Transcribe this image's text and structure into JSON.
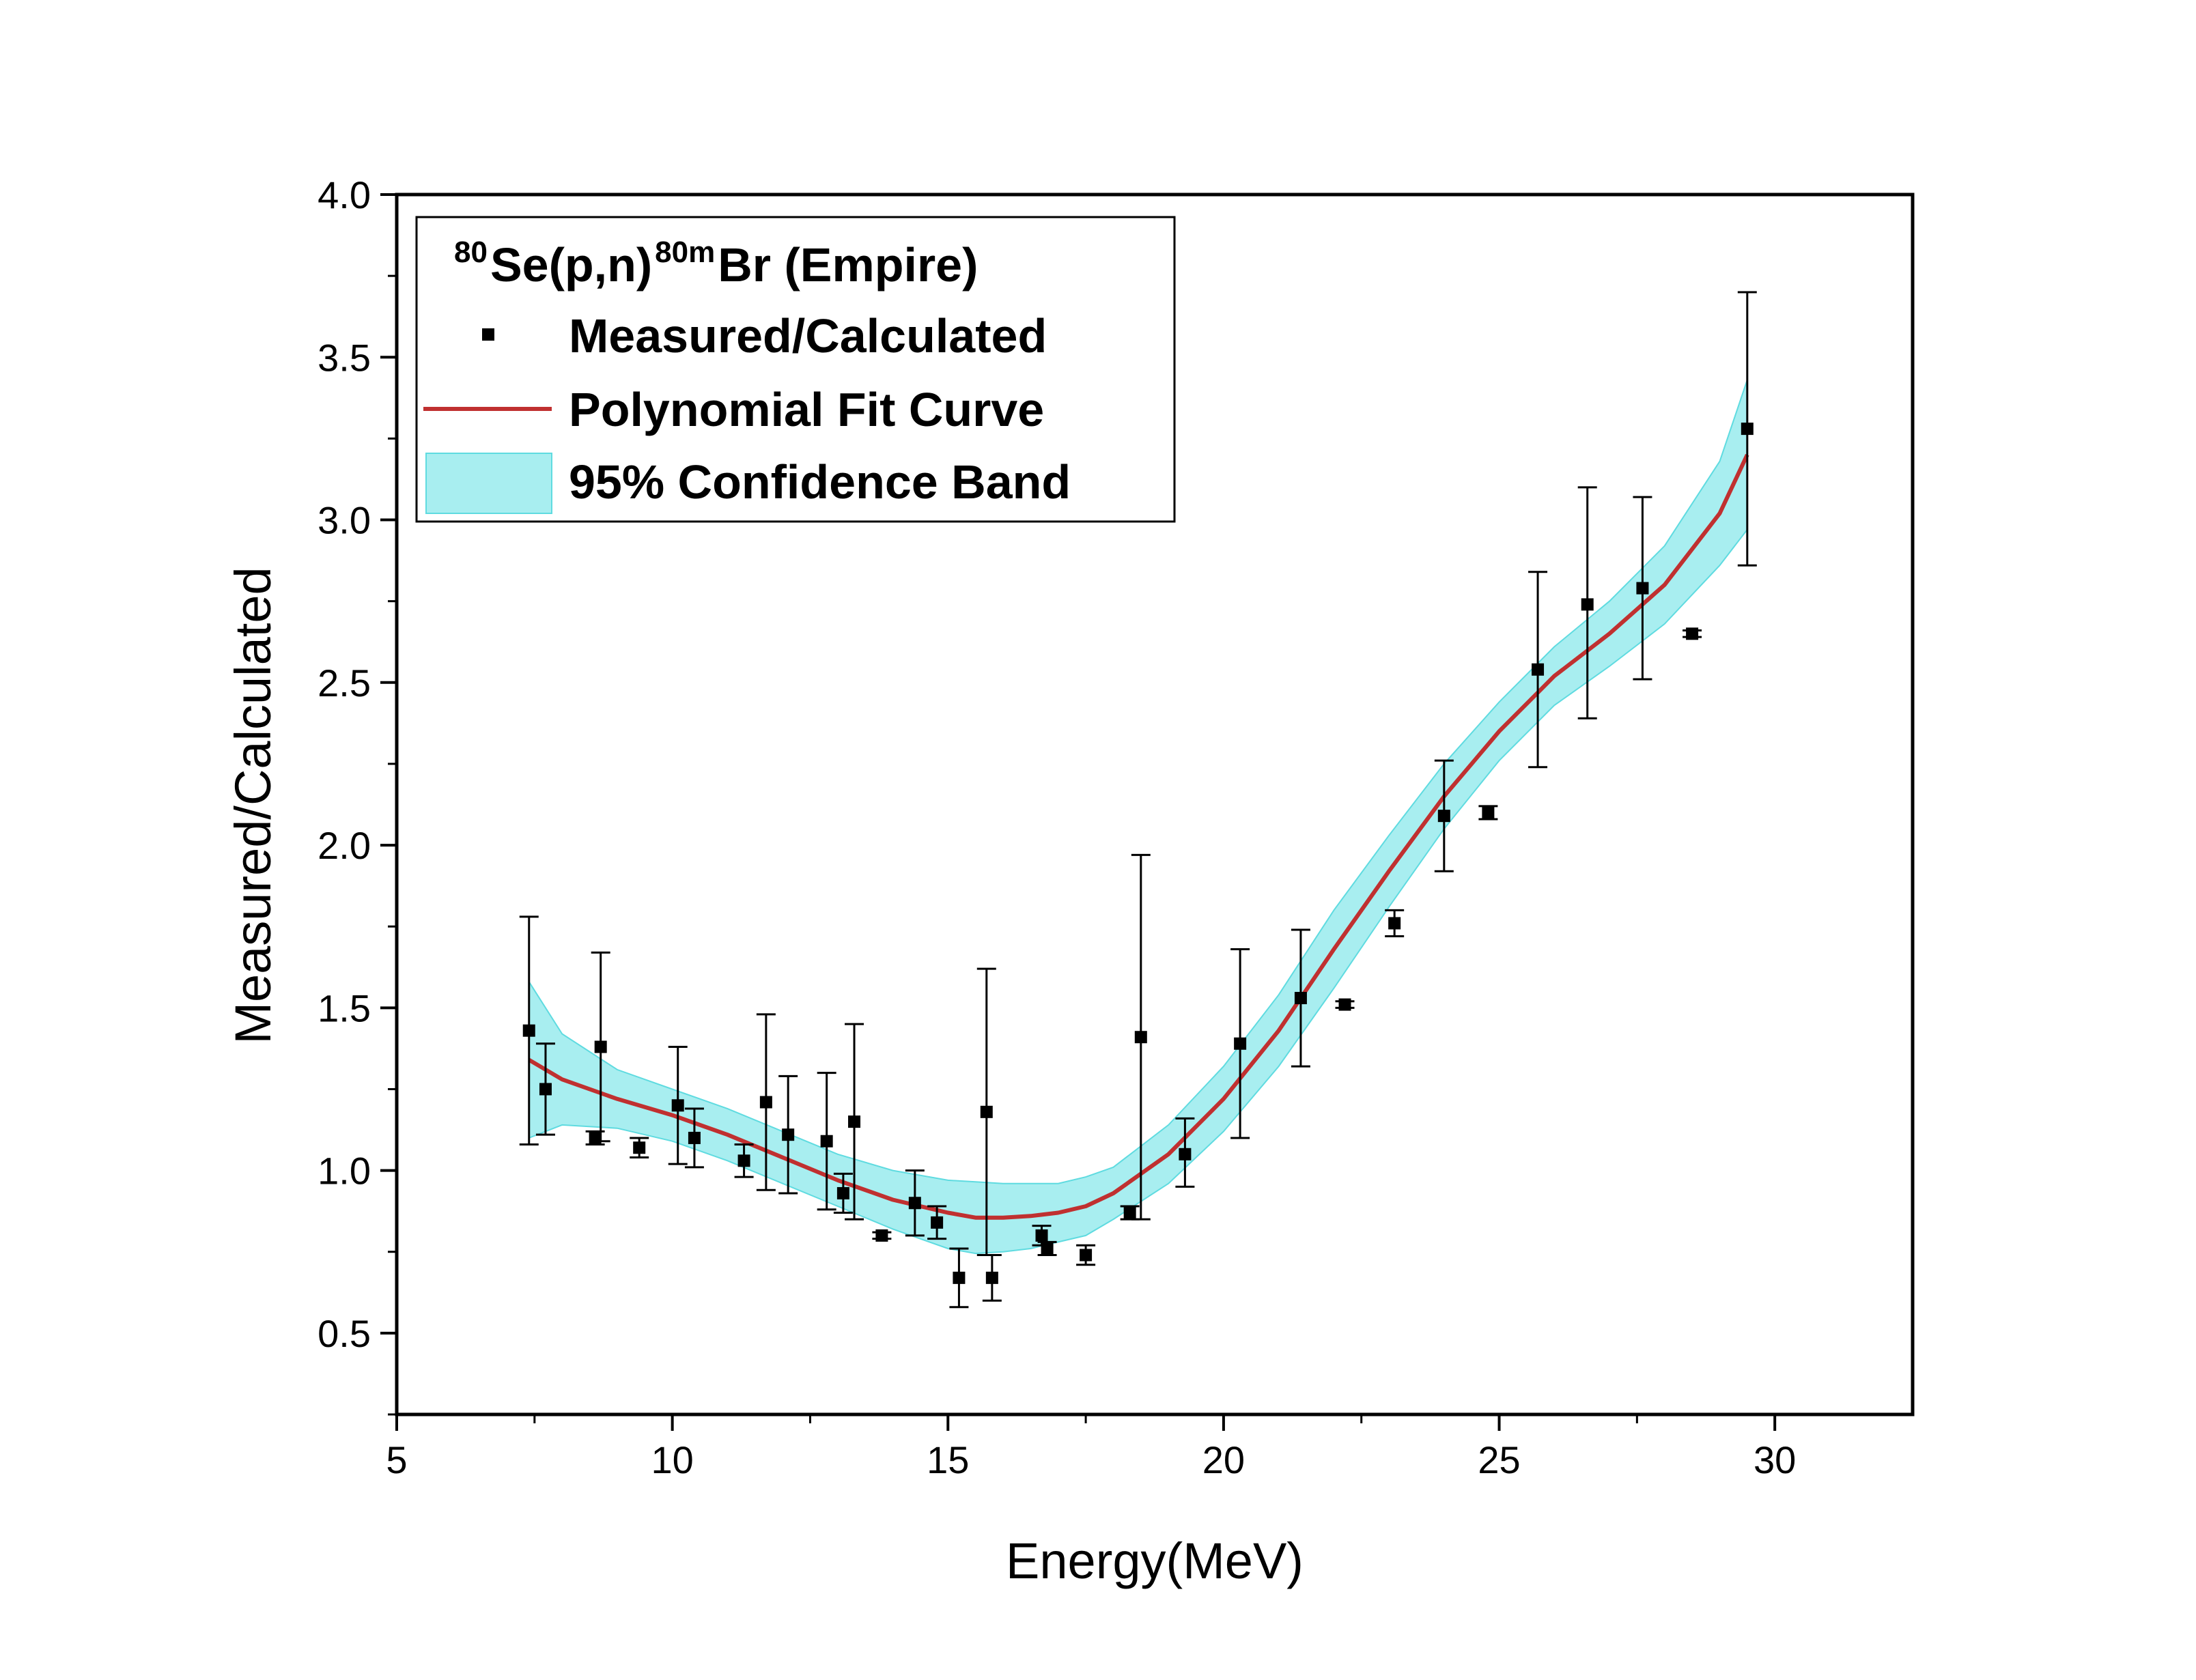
{
  "chart_data": {
    "type": "scatter",
    "xlabel": "Energy(MeV)",
    "ylabel": "Measured/Calculated",
    "xlim": [
      5,
      32.5
    ],
    "ylim": [
      0.25,
      4.0
    ],
    "x_ticks": [
      "5",
      "10",
      "15",
      "20",
      "25",
      "30"
    ],
    "x_tick_values": [
      5,
      10,
      15,
      20,
      25,
      30
    ],
    "y_ticks": [
      "0.5",
      "1.0",
      "1.5",
      "2.0",
      "2.5",
      "3.0",
      "3.5",
      "4.0"
    ],
    "y_tick_values": [
      0.5,
      1.0,
      1.5,
      2.0,
      2.5,
      3.0,
      3.5,
      4.0
    ],
    "legend": {
      "title_parts": {
        "sup1": "80",
        "main1": "Se(p,n)",
        "sup2": "80m",
        "main2": "Br (Empire)"
      },
      "items": [
        "Measured/Calculated",
        "Polynomial Fit Curve",
        "95% Confidence Band"
      ],
      "position": "top-left"
    },
    "colors": {
      "points": "#000000",
      "fit": "#c03030",
      "band": "#a8eef0",
      "band_edge": "#5fdbe0"
    },
    "series": [
      {
        "name": "Measured/Calculated",
        "points": [
          {
            "x": 7.4,
            "y": 1.43,
            "lo": 1.08,
            "hi": 1.78
          },
          {
            "x": 7.7,
            "y": 1.25,
            "lo": 1.11,
            "hi": 1.39
          },
          {
            "x": 8.6,
            "y": 1.1,
            "lo": 1.08,
            "hi": 1.12
          },
          {
            "x": 8.7,
            "y": 1.38,
            "lo": 1.09,
            "hi": 1.67
          },
          {
            "x": 9.4,
            "y": 1.07,
            "lo": 1.04,
            "hi": 1.1
          },
          {
            "x": 10.1,
            "y": 1.2,
            "lo": 1.02,
            "hi": 1.38
          },
          {
            "x": 10.4,
            "y": 1.1,
            "lo": 1.01,
            "hi": 1.19
          },
          {
            "x": 11.3,
            "y": 1.03,
            "lo": 0.98,
            "hi": 1.08
          },
          {
            "x": 11.7,
            "y": 1.21,
            "lo": 0.94,
            "hi": 1.48
          },
          {
            "x": 12.1,
            "y": 1.11,
            "lo": 0.93,
            "hi": 1.29
          },
          {
            "x": 12.8,
            "y": 1.09,
            "lo": 0.88,
            "hi": 1.3
          },
          {
            "x": 13.1,
            "y": 0.93,
            "lo": 0.87,
            "hi": 0.99
          },
          {
            "x": 13.3,
            "y": 1.15,
            "lo": 0.85,
            "hi": 1.45
          },
          {
            "x": 13.8,
            "y": 0.8,
            "lo": 0.79,
            "hi": 0.81
          },
          {
            "x": 14.4,
            "y": 0.9,
            "lo": 0.8,
            "hi": 1.0
          },
          {
            "x": 14.8,
            "y": 0.84,
            "lo": 0.79,
            "hi": 0.89
          },
          {
            "x": 15.2,
            "y": 0.67,
            "lo": 0.58,
            "hi": 0.76
          },
          {
            "x": 15.7,
            "y": 1.18,
            "lo": 0.74,
            "hi": 1.62
          },
          {
            "x": 15.8,
            "y": 0.67,
            "lo": 0.6,
            "hi": 0.74
          },
          {
            "x": 16.7,
            "y": 0.8,
            "lo": 0.77,
            "hi": 0.83
          },
          {
            "x": 16.8,
            "y": 0.76,
            "lo": 0.74,
            "hi": 0.78
          },
          {
            "x": 17.5,
            "y": 0.74,
            "lo": 0.71,
            "hi": 0.77
          },
          {
            "x": 18.3,
            "y": 0.87,
            "lo": 0.85,
            "hi": 0.89
          },
          {
            "x": 18.5,
            "y": 1.41,
            "lo": 0.85,
            "hi": 1.97
          },
          {
            "x": 19.3,
            "y": 1.05,
            "lo": 0.95,
            "hi": 1.16
          },
          {
            "x": 20.3,
            "y": 1.39,
            "lo": 1.1,
            "hi": 1.68
          },
          {
            "x": 21.4,
            "y": 1.53,
            "lo": 1.32,
            "hi": 1.74
          },
          {
            "x": 22.2,
            "y": 1.51,
            "lo": 1.5,
            "hi": 1.52
          },
          {
            "x": 23.1,
            "y": 1.76,
            "lo": 1.72,
            "hi": 1.8
          },
          {
            "x": 24.0,
            "y": 2.09,
            "lo": 1.92,
            "hi": 2.26
          },
          {
            "x": 24.8,
            "y": 2.1,
            "lo": 2.08,
            "hi": 2.12
          },
          {
            "x": 25.7,
            "y": 2.54,
            "lo": 2.24,
            "hi": 2.84
          },
          {
            "x": 26.6,
            "y": 2.74,
            "lo": 2.39,
            "hi": 3.1
          },
          {
            "x": 27.6,
            "y": 2.79,
            "lo": 2.51,
            "hi": 3.07
          },
          {
            "x": 28.5,
            "y": 2.65,
            "lo": 2.64,
            "hi": 2.66
          },
          {
            "x": 29.5,
            "y": 3.28,
            "lo": 2.86,
            "hi": 3.7
          }
        ]
      },
      {
        "name": "Polynomial Fit Curve",
        "x": [
          7.4,
          8,
          9,
          10,
          11,
          12,
          13,
          14,
          15,
          15.5,
          16,
          16.5,
          17,
          17.5,
          18,
          19,
          20,
          21,
          22,
          23,
          24,
          25,
          26,
          27,
          28,
          29,
          29.5
        ],
        "y": [
          1.34,
          1.28,
          1.22,
          1.17,
          1.11,
          1.04,
          0.97,
          0.91,
          0.87,
          0.855,
          0.855,
          0.86,
          0.87,
          0.89,
          0.93,
          1.05,
          1.22,
          1.43,
          1.68,
          1.92,
          2.15,
          2.35,
          2.52,
          2.65,
          2.8,
          3.02,
          3.2
        ]
      },
      {
        "name": "95% Confidence Band",
        "x": [
          7.4,
          8,
          9,
          10,
          11,
          12,
          13,
          14,
          15,
          15.5,
          16,
          16.5,
          17,
          17.5,
          18,
          19,
          20,
          21,
          22,
          23,
          24,
          25,
          26,
          27,
          28,
          29,
          29.5
        ],
        "lower": [
          1.1,
          1.14,
          1.13,
          1.09,
          1.03,
          0.96,
          0.89,
          0.82,
          0.76,
          0.745,
          0.75,
          0.76,
          0.78,
          0.8,
          0.85,
          0.96,
          1.12,
          1.32,
          1.56,
          1.81,
          2.05,
          2.26,
          2.43,
          2.55,
          2.68,
          2.86,
          2.97
        ],
        "upper": [
          1.58,
          1.42,
          1.31,
          1.25,
          1.19,
          1.12,
          1.05,
          1.0,
          0.97,
          0.965,
          0.96,
          0.96,
          0.96,
          0.98,
          1.01,
          1.14,
          1.32,
          1.54,
          1.8,
          2.03,
          2.25,
          2.44,
          2.61,
          2.75,
          2.92,
          3.18,
          3.43
        ]
      }
    ]
  }
}
